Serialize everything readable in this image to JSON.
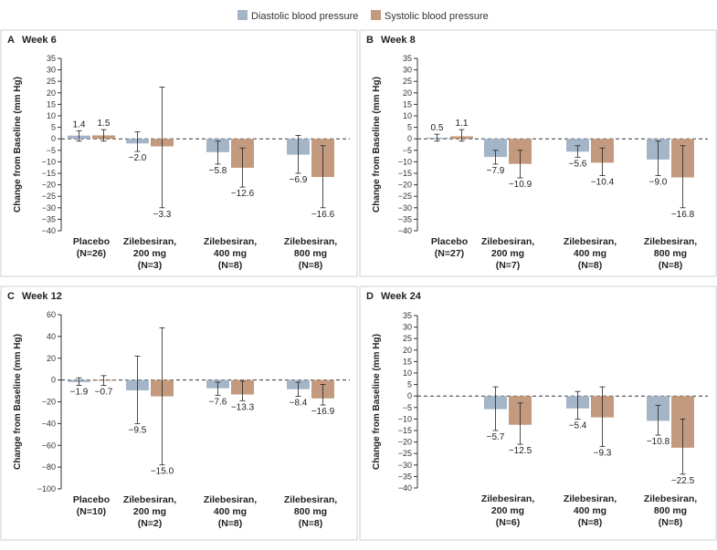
{
  "legend": {
    "items": [
      {
        "label": "Diastolic blood pressure",
        "color": "#a4b5c8"
      },
      {
        "label": "Systolic blood pressure",
        "color": "#c49a7e"
      }
    ]
  },
  "chart_data": [
    {
      "type": "bar",
      "panel_letter": "A",
      "title": "Week 6",
      "ylabel": "Change from Baseline (mm Hg)",
      "ylim": [
        -40,
        35
      ],
      "yticks": [
        -40,
        -35,
        -30,
        -25,
        -20,
        -15,
        -10,
        -5,
        0,
        5,
        10,
        15,
        20,
        25,
        30,
        35
      ],
      "categories": [
        {
          "name": "Placebo",
          "dose": "",
          "n": "(N=26)"
        },
        {
          "name": "Zilebesiran,",
          "dose": "200 mg",
          "n": "(N=3)"
        },
        {
          "name": "Zilebesiran,",
          "dose": "400 mg",
          "n": "(N=8)"
        },
        {
          "name": "Zilebesiran,",
          "dose": "800 mg",
          "n": "(N=8)"
        }
      ],
      "series": [
        {
          "name": "Diastolic blood pressure",
          "values": [
            1.4,
            -2.0,
            -5.8,
            -6.9
          ],
          "err_low": [
            -1,
            -5.5,
            -11,
            -15
          ],
          "err_high": [
            3.5,
            3,
            -1,
            1.5
          ],
          "labels": [
            "1.4",
            "−2.0",
            "−5.8",
            "−6.9"
          ]
        },
        {
          "name": "Systolic blood pressure",
          "values": [
            1.5,
            -3.3,
            -12.6,
            -16.6
          ],
          "err_low": [
            -1,
            -30,
            -21,
            -30
          ],
          "err_high": [
            4,
            22.5,
            -4,
            -3
          ],
          "labels": [
            "1.5",
            "−3.3",
            "−12.6",
            "−16.6"
          ]
        }
      ]
    },
    {
      "type": "bar",
      "panel_letter": "B",
      "title": "Week 8",
      "ylabel": "Change from Baseline (mm Hg)",
      "ylim": [
        -40,
        35
      ],
      "yticks": [
        -40,
        -35,
        -30,
        -25,
        -20,
        -15,
        -10,
        -5,
        0,
        5,
        10,
        15,
        20,
        25,
        30,
        35
      ],
      "categories": [
        {
          "name": "Placebo",
          "dose": "",
          "n": "(N=27)"
        },
        {
          "name": "Zilebesiran,",
          "dose": "200 mg",
          "n": "(N=7)"
        },
        {
          "name": "Zilebesiran,",
          "dose": "400 mg",
          "n": "(N=8)"
        },
        {
          "name": "Zilebesiran,",
          "dose": "800 mg",
          "n": "(N=8)"
        }
      ],
      "series": [
        {
          "name": "Diastolic blood pressure",
          "values": [
            0.5,
            -7.9,
            -5.6,
            -9.0
          ],
          "err_low": [
            -1,
            -11,
            -8,
            -16
          ],
          "err_high": [
            2,
            -5,
            -3,
            -1
          ],
          "labels": [
            "0.5",
            "−7.9",
            "−5.6",
            "−9.0"
          ]
        },
        {
          "name": "Systolic blood pressure",
          "values": [
            1.1,
            -10.9,
            -10.4,
            -16.8
          ],
          "err_low": [
            -1,
            -17,
            -16,
            -30
          ],
          "err_high": [
            4,
            -5,
            -4,
            -3
          ],
          "labels": [
            "1.1",
            "−10.9",
            "−10.4",
            "−16.8"
          ]
        }
      ]
    },
    {
      "type": "bar",
      "panel_letter": "C",
      "title": "Week 12",
      "ylabel": "Change from Baseline (mm Hg)",
      "ylim": [
        -100,
        60
      ],
      "yticks": [
        -100,
        -80,
        -60,
        -40,
        -20,
        0,
        20,
        40,
        60
      ],
      "categories": [
        {
          "name": "Placebo",
          "dose": "",
          "n": "(N=10)"
        },
        {
          "name": "Zilebesiran,",
          "dose": "200 mg",
          "n": "(N=2)"
        },
        {
          "name": "Zilebesiran,",
          "dose": "400 mg",
          "n": "(N=8)"
        },
        {
          "name": "Zilebesiran,",
          "dose": "800 mg",
          "n": "(N=8)"
        }
      ],
      "series": [
        {
          "name": "Diastolic blood pressure",
          "values": [
            -1.9,
            -9.5,
            -7.6,
            -8.4
          ],
          "err_low": [
            -5,
            -40,
            -14,
            -15
          ],
          "err_high": [
            2,
            22,
            -2,
            -2
          ],
          "labels": [
            "−1.9",
            "−9.5",
            "−7.6",
            "−8.4"
          ]
        },
        {
          "name": "Systolic blood pressure",
          "values": [
            -0.7,
            -15.0,
            -13.3,
            -16.9
          ],
          "err_low": [
            -5,
            -78,
            -19,
            -23
          ],
          "err_high": [
            4,
            48,
            -1,
            -4
          ],
          "labels": [
            "−0.7",
            "−15.0",
            "−13.3",
            "−16.9"
          ]
        }
      ]
    },
    {
      "type": "bar",
      "panel_letter": "D",
      "title": "Week 24",
      "ylabel": "Change from Baseline (mm Hg)",
      "ylim": [
        -40,
        35
      ],
      "yticks": [
        -40,
        -35,
        -30,
        -25,
        -20,
        -15,
        -10,
        -5,
        0,
        5,
        10,
        15,
        20,
        25,
        30,
        35
      ],
      "categories": [
        {
          "name": "",
          "dose": "",
          "n": ""
        },
        {
          "name": "Zilebesiran,",
          "dose": "200 mg",
          "n": "(N=6)"
        },
        {
          "name": "Zilebesiran,",
          "dose": "400 mg",
          "n": "(N=8)"
        },
        {
          "name": "Zilebesiran,",
          "dose": "800 mg",
          "n": "(N=8)"
        }
      ],
      "series": [
        {
          "name": "Diastolic blood pressure",
          "values": [
            null,
            -5.7,
            -5.4,
            -10.8
          ],
          "err_low": [
            null,
            -15,
            -10,
            -17
          ],
          "err_high": [
            null,
            4,
            2,
            -4
          ],
          "labels": [
            "",
            "−5.7",
            "−5.4",
            "−10.8"
          ]
        },
        {
          "name": "Systolic blood pressure",
          "values": [
            null,
            -12.5,
            -9.3,
            -22.5
          ],
          "err_low": [
            null,
            -21,
            -22,
            -34
          ],
          "err_high": [
            null,
            -3,
            4,
            -10
          ],
          "labels": [
            "",
            "−12.5",
            "−9.3",
            "−22.5"
          ]
        }
      ]
    }
  ]
}
